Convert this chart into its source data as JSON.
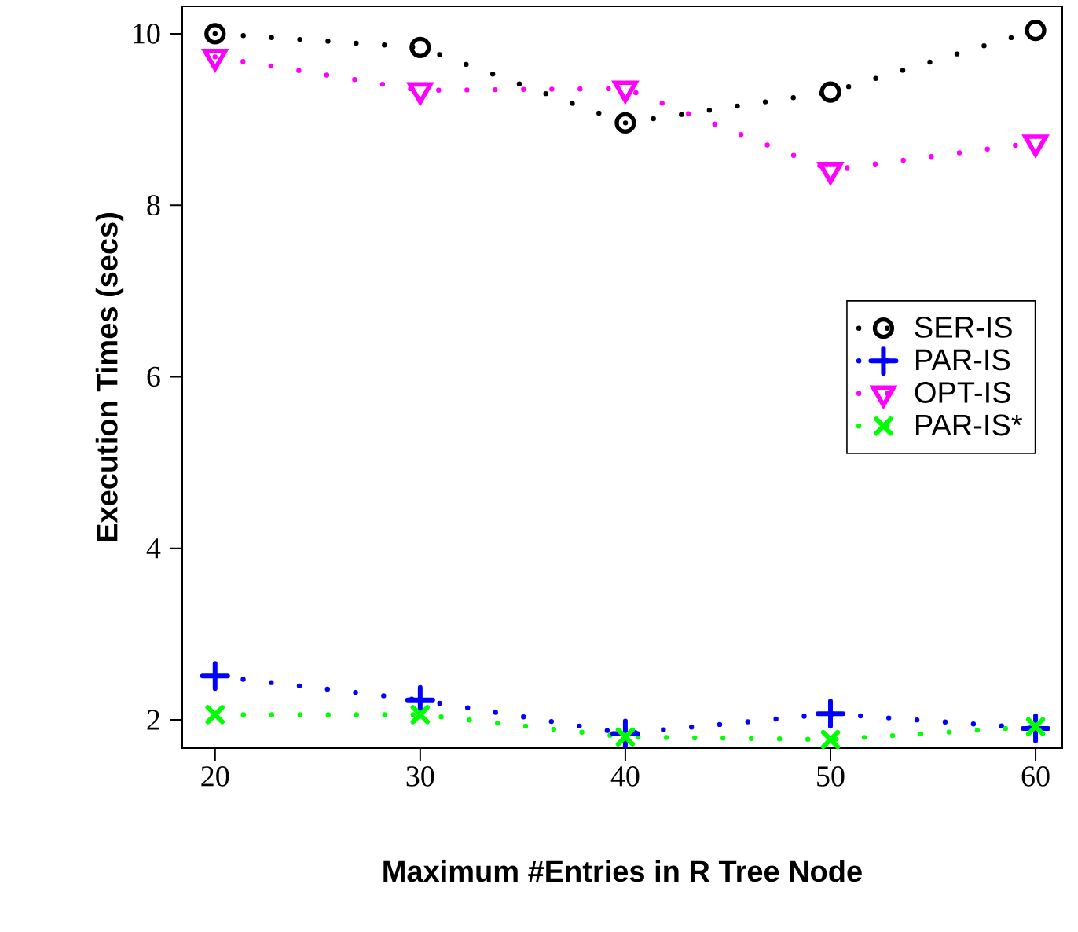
{
  "chart_data": {
    "type": "line",
    "xlabel": "Maximum #Entries in R Tree Node",
    "ylabel": "Execution Times (secs)",
    "x": [
      20,
      30,
      40,
      50,
      60
    ],
    "series": [
      {
        "name": "SER-IS",
        "color": "#000000",
        "marker": "circle",
        "values": [
          10.0,
          9.84,
          8.96,
          9.32,
          10.04
        ]
      },
      {
        "name": "PAR-IS",
        "color": "#0000ff",
        "marker": "plus",
        "values": [
          2.51,
          2.23,
          1.84,
          2.07,
          1.9
        ]
      },
      {
        "name": "OPT-IS",
        "color": "#ff00ff",
        "marker": "triangle",
        "values": [
          9.73,
          9.34,
          9.36,
          8.41,
          8.73
        ]
      },
      {
        "name": "PAR-IS*",
        "color": "#00ff00",
        "marker": "cross",
        "values": [
          2.06,
          2.06,
          1.8,
          1.77,
          1.92
        ]
      }
    ],
    "line_style": "dotted",
    "legend": "right",
    "grid": false,
    "xlim": [
      18.4,
      61.3
    ],
    "ylim": [
      1.67,
      10.32
    ],
    "xticks": [
      20,
      30,
      40,
      50,
      60
    ],
    "yticks": [
      2,
      4,
      6,
      8,
      10
    ]
  }
}
